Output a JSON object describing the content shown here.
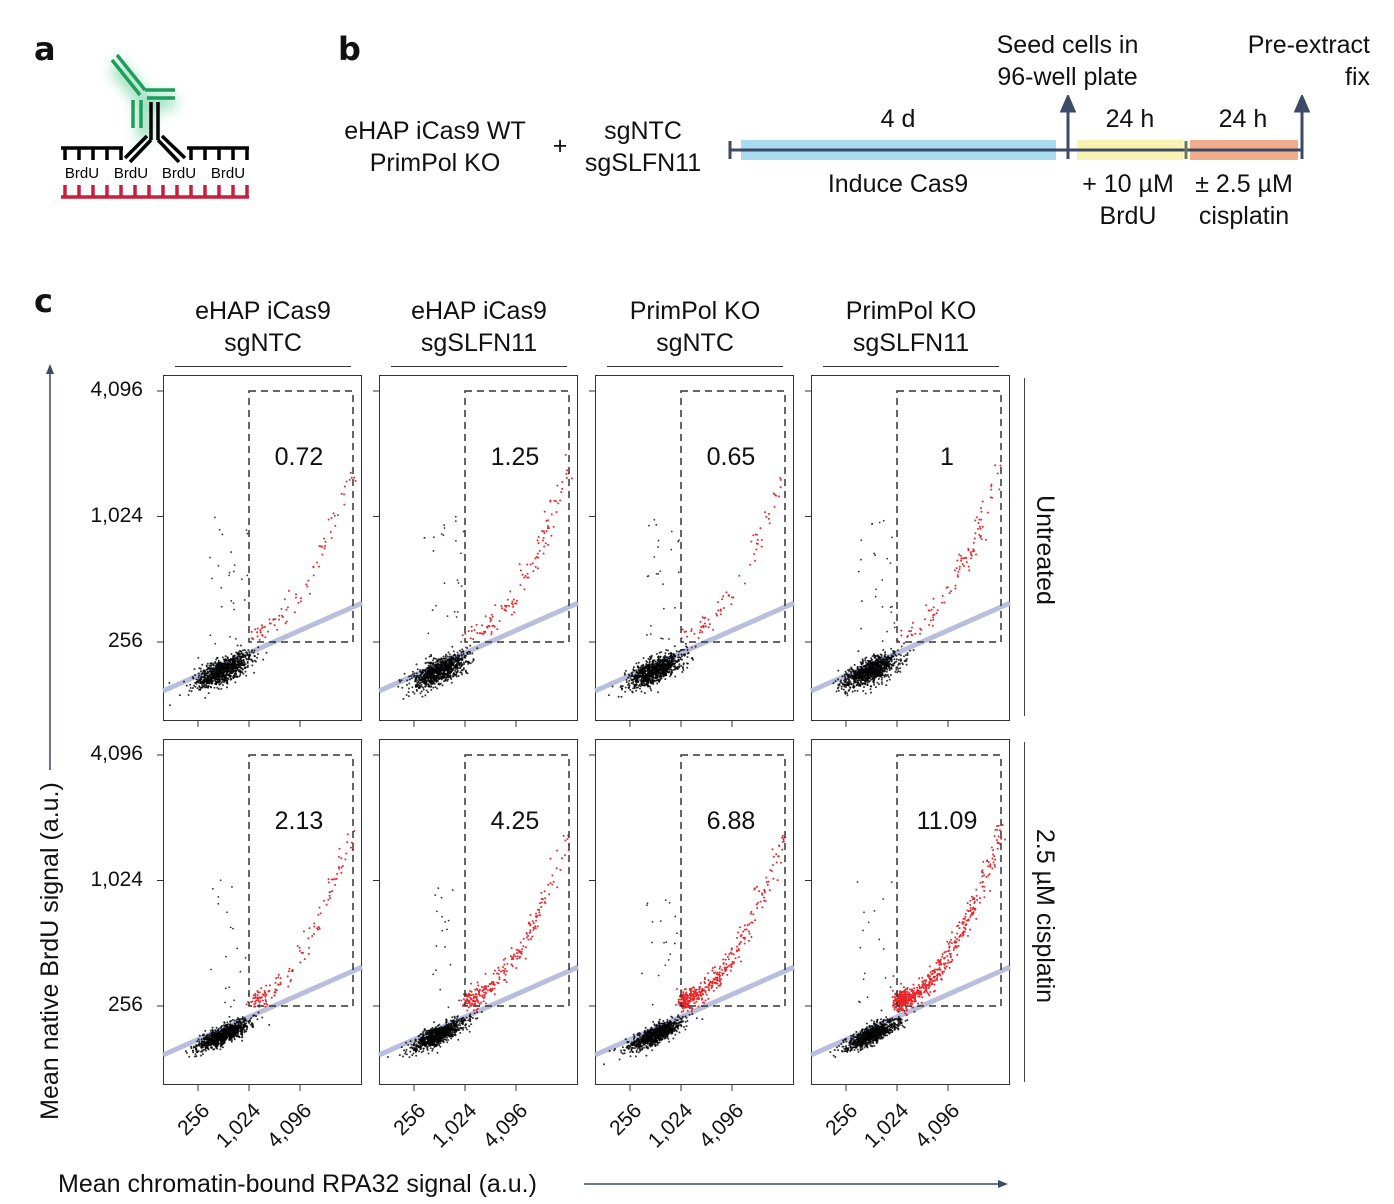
{
  "panel_a": {
    "label": "a",
    "base_labels": [
      "BrdU",
      "BrdU",
      "BrdU",
      "BrdU"
    ],
    "colors": {
      "antibody_primary": "#000000",
      "antibody_secondary": "#1a9e5a",
      "strand_new": "#000000",
      "strand_template": "#c8203c"
    }
  },
  "panel_b": {
    "label": "b",
    "cell_lines": [
      "eHAP iCas9 WT",
      "PrimPol KO"
    ],
    "plus": "+",
    "guides": [
      "sgNTC",
      "sgSLFN11"
    ],
    "timeline": {
      "segments": [
        {
          "duration": "4 d",
          "label": "Induce Cas9",
          "color": "#a8dcef"
        },
        {
          "duration": "24 h",
          "label": "+ 10 µM BrdU",
          "color": "#f8f2b0"
        },
        {
          "duration": "24 h",
          "label": "± 2.5 µM cisplatin",
          "color": "#f2ae8c"
        }
      ],
      "events": [
        "Seed cells in 96-well plate",
        "Pre-extract fix"
      ]
    }
  },
  "panel_c": {
    "label": "c",
    "columns": [
      "eHAP iCas9 sgNTC",
      "eHAP iCas9 sgSLFN11",
      "PrimPol KO sgNTC",
      "PrimPol KO sgSLFN11"
    ],
    "rows": [
      "Untreated",
      "2.5 µM cisplatin"
    ],
    "xlabel": "Mean chromatin-bound RPA32 signal (a.u.)",
    "ylabel": "Mean native BrdU signal (a.u.)"
  },
  "chart_data": {
    "type": "scatter",
    "x_scale": "log2",
    "y_scale": "log2",
    "x_ticks": [
      "256",
      "1,024",
      "4,096"
    ],
    "y_ticks": [
      "4,096",
      "1,024",
      "256"
    ],
    "gate": {
      "x_min": 1024,
      "y_min": 256,
      "y_max": 4096
    },
    "gate_percentages": [
      [
        "0.72",
        "1.25",
        "0.65",
        "1"
      ],
      [
        "2.13",
        "4.25",
        "6.88",
        "11.09"
      ]
    ],
    "colors": {
      "inside_gate": "#e8262b",
      "outside_gate": "#000000",
      "fit_line": "#b8bedc"
    }
  }
}
